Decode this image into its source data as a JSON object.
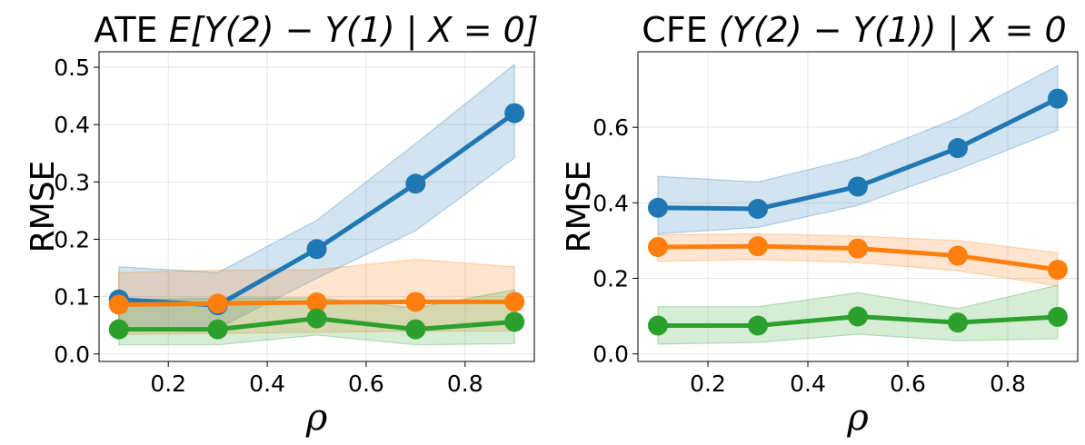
{
  "chart_data": [
    {
      "type": "line",
      "title": "ATE E[Y(2) − Y(1) | X = 0]",
      "title_parts": {
        "prefix": "ATE ",
        "math": "E[Y(2) − Y(1) | X = 0]"
      },
      "xlabel": "ρ",
      "ylabel": "RMSE",
      "x": [
        0.1,
        0.3,
        0.5,
        0.7,
        0.9
      ],
      "xlim": [
        0.06,
        0.94
      ],
      "ylim": [
        -0.013,
        0.527
      ],
      "xticks": [
        0.2,
        0.4,
        0.6,
        0.8
      ],
      "xtick_labels": [
        "0.2",
        "0.4",
        "0.6",
        "0.8"
      ],
      "yticks": [
        0.0,
        0.1,
        0.2,
        0.3,
        0.4,
        0.5
      ],
      "ytick_labels": [
        "0.0",
        "0.1",
        "0.2",
        "0.3",
        "0.4",
        "0.5"
      ],
      "grid": true,
      "series": [
        {
          "color": "#1f77b4",
          "values": [
            0.095,
            0.085,
            0.183,
            0.297,
            0.42
          ],
          "lower": [
            0.04,
            0.045,
            0.132,
            0.215,
            0.342
          ],
          "upper": [
            0.152,
            0.142,
            0.233,
            0.367,
            0.505
          ]
        },
        {
          "color": "#ff7f0e",
          "values": [
            0.086,
            0.088,
            0.09,
            0.091,
            0.091
          ],
          "lower": [
            0.034,
            0.036,
            0.038,
            0.04,
            0.04
          ],
          "upper": [
            0.142,
            0.146,
            0.147,
            0.165,
            0.152
          ]
        },
        {
          "color": "#2ca02c",
          "values": [
            0.043,
            0.043,
            0.062,
            0.043,
            0.056
          ],
          "lower": [
            0.016,
            0.016,
            0.033,
            0.016,
            0.018
          ],
          "upper": [
            0.095,
            0.097,
            0.098,
            0.08,
            0.112
          ]
        }
      ]
    },
    {
      "type": "line",
      "title": "CFE (Y(2) − Y(1)) | X = 0",
      "title_parts": {
        "prefix": "CFE ",
        "math": "(Y(2) − Y(1)) | X = 0"
      },
      "xlabel": "ρ",
      "ylabel": "RMSE",
      "x": [
        0.1,
        0.3,
        0.5,
        0.7,
        0.9
      ],
      "xlim": [
        0.06,
        0.94
      ],
      "ylim": [
        -0.02,
        0.8
      ],
      "xticks": [
        0.2,
        0.4,
        0.6,
        0.8
      ],
      "xtick_labels": [
        "0.2",
        "0.4",
        "0.6",
        "0.8"
      ],
      "yticks": [
        0.0,
        0.2,
        0.4,
        0.6
      ],
      "ytick_labels": [
        "0.0",
        "0.2",
        "0.4",
        "0.6"
      ],
      "grid": true,
      "series": [
        {
          "color": "#1f77b4",
          "values": [
            0.387,
            0.384,
            0.443,
            0.545,
            0.676
          ],
          "lower": [
            0.318,
            0.335,
            0.393,
            0.488,
            0.592
          ],
          "upper": [
            0.47,
            0.455,
            0.52,
            0.625,
            0.763
          ]
        },
        {
          "color": "#ff7f0e",
          "values": [
            0.283,
            0.285,
            0.279,
            0.26,
            0.223
          ],
          "lower": [
            0.245,
            0.25,
            0.242,
            0.22,
            0.18
          ],
          "upper": [
            0.315,
            0.318,
            0.312,
            0.3,
            0.268
          ]
        },
        {
          "color": "#2ca02c",
          "values": [
            0.075,
            0.075,
            0.099,
            0.083,
            0.098
          ],
          "lower": [
            0.026,
            0.03,
            0.052,
            0.035,
            0.04
          ],
          "upper": [
            0.125,
            0.125,
            0.162,
            0.12,
            0.182
          ]
        }
      ]
    }
  ]
}
